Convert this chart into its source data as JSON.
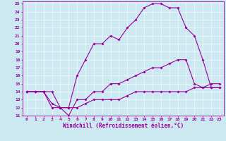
{
  "xlabel": "Windchill (Refroidissement éolien,°C)",
  "bg_color": "#cce8f0",
  "line_color": "#990099",
  "grid_color": "#ffffff",
  "spine_color": "#990099",
  "xlim": [
    -0.5,
    23.5
  ],
  "ylim": [
    11,
    25.3
  ],
  "xticks": [
    0,
    1,
    2,
    3,
    4,
    5,
    6,
    7,
    8,
    9,
    10,
    11,
    12,
    13,
    14,
    15,
    16,
    17,
    18,
    19,
    20,
    21,
    22,
    23
  ],
  "yticks": [
    11,
    12,
    13,
    14,
    15,
    16,
    17,
    18,
    19,
    20,
    21,
    22,
    23,
    24,
    25
  ],
  "line1_x": [
    0,
    1,
    2,
    3,
    4,
    5,
    6,
    7,
    8,
    9,
    10,
    11,
    12,
    13,
    14,
    15,
    16,
    17,
    18,
    19,
    20,
    21,
    22,
    23
  ],
  "line1_y": [
    14,
    14,
    14,
    14,
    12,
    12,
    16,
    18,
    20,
    20,
    21,
    20.5,
    22,
    23,
    24.5,
    25,
    25,
    24.5,
    24.5,
    22,
    21,
    18,
    14.5,
    14.5
  ],
  "line2_x": [
    0,
    1,
    2,
    3,
    4,
    5,
    6,
    7,
    8,
    9,
    10,
    11,
    12,
    13,
    14,
    15,
    16,
    17,
    18,
    19,
    20,
    21,
    22,
    23
  ],
  "line2_y": [
    14,
    14,
    14,
    12,
    12,
    11,
    13,
    13,
    14,
    14,
    15,
    15,
    15.5,
    16,
    16.5,
    17,
    17,
    17.5,
    18,
    18,
    15,
    14.5,
    14.5,
    14.5
  ],
  "line3_x": [
    0,
    1,
    2,
    3,
    4,
    5,
    6,
    7,
    8,
    9,
    10,
    11,
    12,
    13,
    14,
    15,
    16,
    17,
    18,
    19,
    20,
    21,
    22,
    23
  ],
  "line3_y": [
    14,
    14,
    14,
    12.5,
    12,
    12,
    12,
    12.5,
    13,
    13,
    13,
    13,
    13.5,
    14,
    14,
    14,
    14,
    14,
    14,
    14,
    14.5,
    14.5,
    15,
    15
  ],
  "tick_fontsize": 4.5,
  "xlabel_fontsize": 5.5,
  "linewidth": 0.8,
  "markersize": 2.0
}
